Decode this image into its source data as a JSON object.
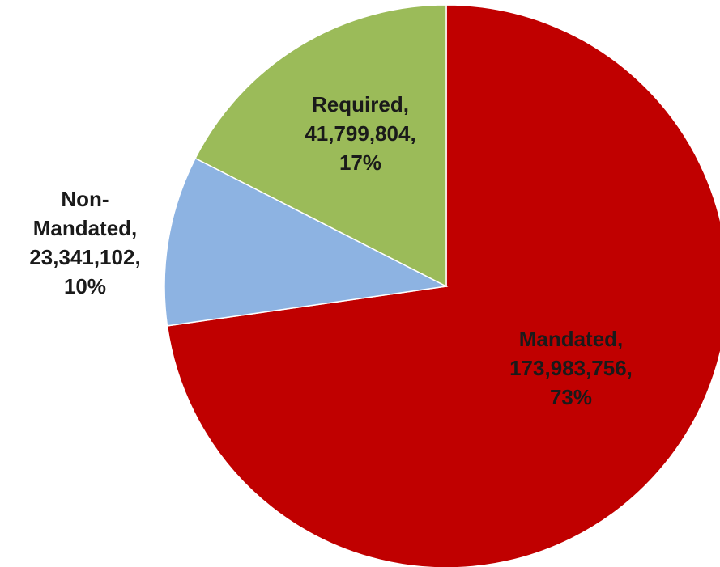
{
  "chart_data": {
    "type": "pie",
    "categories": [
      "Mandated,",
      "Non-Mandated,",
      "Required,"
    ],
    "values": [
      173983756,
      23341102,
      41799804
    ],
    "value_labels": [
      "173,983,756,",
      "23,341,102,",
      "41,799,804,"
    ],
    "percents": [
      73,
      10,
      17
    ],
    "percent_labels": [
      "73%",
      "10%",
      "17%"
    ],
    "colors": [
      "#c00000",
      "#8db3e2",
      "#9bbb59"
    ]
  }
}
